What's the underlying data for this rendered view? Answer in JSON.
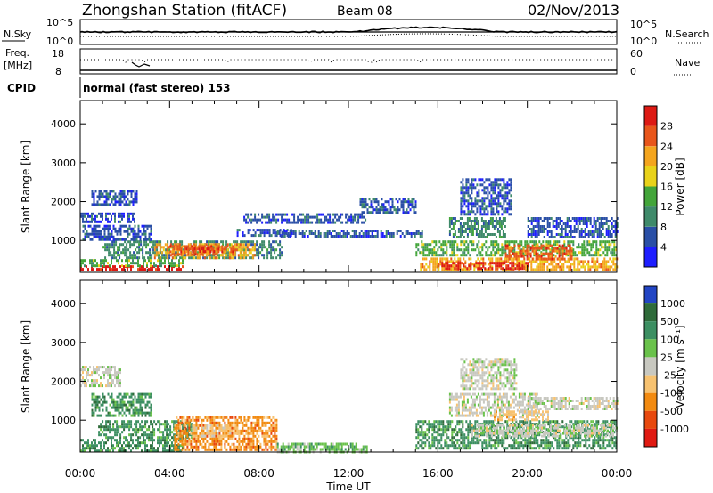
{
  "header": {
    "station": "Zhongshan Station (fitACF)",
    "beam": "Beam 08",
    "date": "02/Nov/2013"
  },
  "top_panels": {
    "nsky_label": "N.Sky",
    "nsky_ticks": [
      "10^5",
      "10^0"
    ],
    "nsearch_label": "N.Search",
    "nsearch_ticks": [
      "10^5",
      "10^0"
    ],
    "freq_label_1": "Freq.",
    "freq_label_2": "[MHz]",
    "freq_ticks": [
      "18",
      "8"
    ],
    "nave_label": "Nave",
    "nave_ticks": [
      "60",
      "0"
    ],
    "cpid_label": "CPID",
    "cpid_text": "normal (fast stereo) 153"
  },
  "chart_data": [
    {
      "type": "heatmap",
      "panel": "power",
      "xlabel": "Time UT",
      "ylabel": "Slant Range [km]",
      "x_ticks": [
        "00:00",
        "04:00",
        "08:00",
        "12:00",
        "16:00",
        "20:00",
        "00:00"
      ],
      "xlim_hours": [
        0,
        24
      ],
      "ylim_km": [
        180,
        4600
      ],
      "y_ticks": [
        1000,
        2000,
        3000,
        4000
      ],
      "colorbar_label": "Power [dB]",
      "colorbar_ticks": [
        "4",
        "8",
        "12",
        "16",
        "20",
        "24",
        "28"
      ],
      "colorbar_colors": [
        "#1e1eff",
        "#2a4fa6",
        "#3f8a6a",
        "#43a53a",
        "#e9d21a",
        "#f4a51e",
        "#e8561b",
        "#dd1a14"
      ],
      "blobs": [
        {
          "t0": 0.0,
          "t1": 4.6,
          "r0": 230,
          "r1": 360,
          "c": 7
        },
        {
          "t0": 0.0,
          "t1": 4.6,
          "r0": 380,
          "r1": 520,
          "c": 3
        },
        {
          "t0": 1.0,
          "t1": 9.0,
          "r0": 550,
          "r1": 1000,
          "c": 2
        },
        {
          "t0": 3.3,
          "t1": 7.8,
          "r0": 580,
          "r1": 930,
          "c": 5
        },
        {
          "t0": 4.0,
          "t1": 6.8,
          "r0": 640,
          "r1": 880,
          "c": 6
        },
        {
          "t0": 5.0,
          "t1": 6.0,
          "r0": 700,
          "r1": 820,
          "c": 7
        },
        {
          "t0": 0.1,
          "t1": 3.2,
          "r0": 1000,
          "r1": 1400,
          "c": 1
        },
        {
          "t0": 0.0,
          "t1": 2.5,
          "r0": 1450,
          "r1": 1720,
          "c": 1
        },
        {
          "t0": 0.5,
          "t1": 2.5,
          "r0": 1900,
          "r1": 2300,
          "c": 1
        },
        {
          "t0": 7.0,
          "t1": 9.5,
          "r0": 1100,
          "r1": 1300,
          "c": 1
        },
        {
          "t0": 7.3,
          "t1": 12.8,
          "r0": 1450,
          "r1": 1700,
          "c": 1
        },
        {
          "t0": 8.8,
          "t1": 15.3,
          "r0": 1100,
          "r1": 1280,
          "c": 1
        },
        {
          "t0": 15.2,
          "t1": 24.0,
          "r0": 260,
          "r1": 560,
          "c": 5
        },
        {
          "t0": 16.0,
          "t1": 20.0,
          "r0": 300,
          "r1": 450,
          "c": 7
        },
        {
          "t0": 15.0,
          "t1": 24.0,
          "r0": 600,
          "r1": 1000,
          "c": 3
        },
        {
          "t0": 19.0,
          "t1": 22.0,
          "r0": 550,
          "r1": 900,
          "c": 6
        },
        {
          "t0": 16.5,
          "t1": 19.0,
          "r0": 1100,
          "r1": 1600,
          "c": 2
        },
        {
          "t0": 17.0,
          "t1": 19.3,
          "r0": 1700,
          "r1": 2600,
          "c": 1
        },
        {
          "t0": 20.0,
          "t1": 24.0,
          "r0": 1100,
          "r1": 1600,
          "c": 1
        },
        {
          "t0": 12.5,
          "t1": 15.0,
          "r0": 1700,
          "r1": 2100,
          "c": 1
        }
      ]
    },
    {
      "type": "heatmap",
      "panel": "velocity",
      "xlabel": "Time UT",
      "ylabel": "Slant Range [km]",
      "x_ticks": [
        "00:00",
        "04:00",
        "08:00",
        "12:00",
        "16:00",
        "20:00",
        "00:00"
      ],
      "xlim_hours": [
        0,
        24
      ],
      "ylim_km": [
        180,
        4600
      ],
      "y_ticks": [
        1000,
        2000,
        3000,
        4000
      ],
      "colorbar_label": "Velocity [m s⁻¹]",
      "colorbar_ticks": [
        "1000",
        "500",
        "100",
        "25",
        "-25",
        "-100",
        "-500",
        "-1000"
      ],
      "colorbar_colors": [
        "#2245c4",
        "#2f6b3a",
        "#3c8f62",
        "#6ac24b",
        "#c8c8c0",
        "#f7c270",
        "#f28a10",
        "#e8490e",
        "#e01a12"
      ],
      "blobs": [
        {
          "t0": 0.0,
          "t1": 4.6,
          "r0": 230,
          "r1": 520,
          "c": 2
        },
        {
          "t0": 0.8,
          "t1": 5.0,
          "r0": 550,
          "r1": 1000,
          "c": 2
        },
        {
          "t0": 4.2,
          "t1": 8.8,
          "r0": 250,
          "r1": 1100,
          "c": 6
        },
        {
          "t0": 5.0,
          "t1": 7.0,
          "r0": 600,
          "r1": 900,
          "c": 5
        },
        {
          "t0": 0.5,
          "t1": 3.2,
          "r0": 1100,
          "r1": 1700,
          "c": 2
        },
        {
          "t0": 0.0,
          "t1": 1.8,
          "r0": 1900,
          "r1": 2400,
          "c": 4
        },
        {
          "t0": 8.8,
          "t1": 12.8,
          "r0": 200,
          "r1": 420,
          "c": 3
        },
        {
          "t0": 15.0,
          "t1": 24.0,
          "r0": 250,
          "r1": 1000,
          "c": 2
        },
        {
          "t0": 17.5,
          "t1": 24.0,
          "r0": 600,
          "r1": 900,
          "c": 4
        },
        {
          "t0": 16.5,
          "t1": 20.5,
          "r0": 1100,
          "r1": 1700,
          "c": 4
        },
        {
          "t0": 17.0,
          "t1": 19.5,
          "r0": 1800,
          "r1": 2600,
          "c": 4
        },
        {
          "t0": 20.0,
          "t1": 24.0,
          "r0": 1300,
          "r1": 1600,
          "c": 4
        },
        {
          "t0": 18.5,
          "t1": 21.0,
          "r0": 1000,
          "r1": 1250,
          "c": 5
        }
      ]
    }
  ]
}
